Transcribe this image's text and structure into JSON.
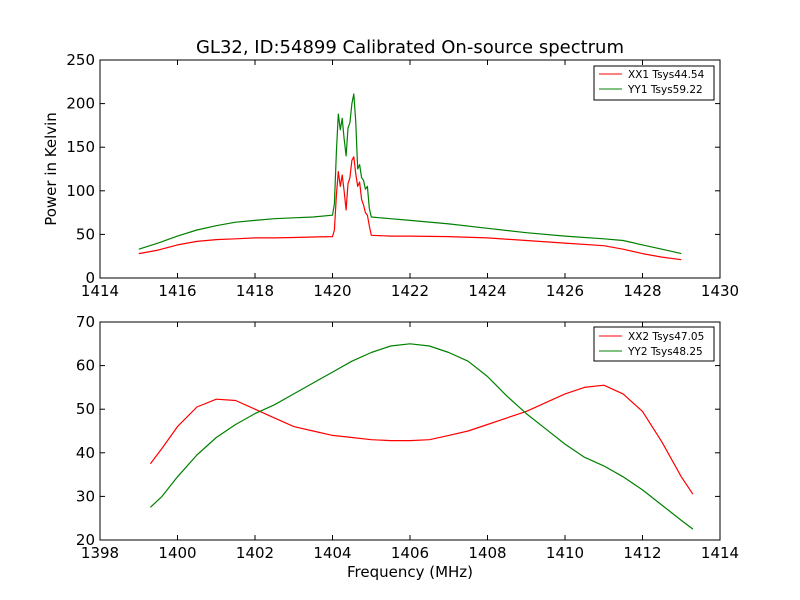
{
  "title": "GL32, ID:54899 Calibrated On-source spectrum",
  "colors": {
    "red": "#ff0000",
    "green": "#008000",
    "frame": "#000000"
  },
  "chart_data": [
    {
      "type": "line",
      "xlabel": "",
      "ylabel": "Power in Kelvin",
      "xlim": [
        1414,
        1430
      ],
      "ylim": [
        0,
        250
      ],
      "xticks": [
        1414,
        1416,
        1418,
        1420,
        1422,
        1424,
        1426,
        1428,
        1430
      ],
      "yticks": [
        0,
        50,
        100,
        150,
        200,
        250
      ],
      "grid": false,
      "legend": "top-right",
      "series": [
        {
          "name": "XX1 Tsys44.54",
          "color": "#ff0000",
          "points": [
            [
              1415.0,
              28
            ],
            [
              1415.5,
              32
            ],
            [
              1416.0,
              38
            ],
            [
              1416.5,
              42
            ],
            [
              1417.0,
              44
            ],
            [
              1417.5,
              45
            ],
            [
              1418.0,
              46
            ],
            [
              1418.5,
              46
            ],
            [
              1419.0,
              46.5
            ],
            [
              1419.5,
              47
            ],
            [
              1420.0,
              47.5
            ],
            [
              1420.05,
              55
            ],
            [
              1420.1,
              95
            ],
            [
              1420.15,
              122
            ],
            [
              1420.2,
              105
            ],
            [
              1420.25,
              118
            ],
            [
              1420.3,
              100
            ],
            [
              1420.35,
              78
            ],
            [
              1420.4,
              108
            ],
            [
              1420.45,
              115
            ],
            [
              1420.5,
              135
            ],
            [
              1420.55,
              139
            ],
            [
              1420.6,
              120
            ],
            [
              1420.65,
              105
            ],
            [
              1420.7,
              110
            ],
            [
              1420.75,
              90
            ],
            [
              1420.8,
              84
            ],
            [
              1420.85,
              75
            ],
            [
              1420.9,
              72
            ],
            [
              1420.95,
              60
            ],
            [
              1421.0,
              49
            ],
            [
              1421.5,
              48
            ],
            [
              1422.0,
              48
            ],
            [
              1423.0,
              47.5
            ],
            [
              1424.0,
              46
            ],
            [
              1425.0,
              43
            ],
            [
              1426.0,
              40
            ],
            [
              1427.0,
              37
            ],
            [
              1427.5,
              33
            ],
            [
              1428.0,
              28
            ],
            [
              1428.5,
              24
            ],
            [
              1429.0,
              21
            ]
          ]
        },
        {
          "name": "YY1 Tsys59.22",
          "color": "#008000",
          "points": [
            [
              1415.0,
              33
            ],
            [
              1415.5,
              40
            ],
            [
              1416.0,
              48
            ],
            [
              1416.5,
              55
            ],
            [
              1417.0,
              60
            ],
            [
              1417.5,
              64
            ],
            [
              1418.0,
              66
            ],
            [
              1418.5,
              68
            ],
            [
              1419.0,
              69
            ],
            [
              1419.5,
              70
            ],
            [
              1420.0,
              72
            ],
            [
              1420.05,
              85
            ],
            [
              1420.1,
              145
            ],
            [
              1420.15,
              188
            ],
            [
              1420.2,
              170
            ],
            [
              1420.25,
              183
            ],
            [
              1420.3,
              160
            ],
            [
              1420.35,
              140
            ],
            [
              1420.4,
              172
            ],
            [
              1420.45,
              178
            ],
            [
              1420.5,
              200
            ],
            [
              1420.55,
              211
            ],
            [
              1420.6,
              180
            ],
            [
              1420.65,
              125
            ],
            [
              1420.7,
              130
            ],
            [
              1420.75,
              115
            ],
            [
              1420.8,
              112
            ],
            [
              1420.85,
              102
            ],
            [
              1420.9,
              105
            ],
            [
              1420.95,
              80
            ],
            [
              1421.0,
              70
            ],
            [
              1421.5,
              68
            ],
            [
              1422.0,
              66
            ],
            [
              1423.0,
              62
            ],
            [
              1424.0,
              57
            ],
            [
              1425.0,
              52
            ],
            [
              1426.0,
              48
            ],
            [
              1427.0,
              45
            ],
            [
              1427.5,
              43
            ],
            [
              1428.0,
              38
            ],
            [
              1428.5,
              33
            ],
            [
              1429.0,
              28
            ]
          ]
        }
      ]
    },
    {
      "type": "line",
      "xlabel": "Frequency (MHz)",
      "ylabel": "",
      "xlim": [
        1398,
        1414
      ],
      "ylim": [
        20,
        70
      ],
      "xticks": [
        1398,
        1400,
        1402,
        1404,
        1406,
        1408,
        1410,
        1412,
        1414
      ],
      "yticks": [
        20,
        30,
        40,
        50,
        60,
        70
      ],
      "grid": false,
      "legend": "top-right",
      "series": [
        {
          "name": "XX2 Tsys47.05",
          "color": "#ff0000",
          "points": [
            [
              1399.3,
              37.5
            ],
            [
              1399.6,
              41
            ],
            [
              1400.0,
              46
            ],
            [
              1400.5,
              50.5
            ],
            [
              1401.0,
              52.3
            ],
            [
              1401.5,
              52
            ],
            [
              1402.0,
              50
            ],
            [
              1402.5,
              48
            ],
            [
              1403.0,
              46
            ],
            [
              1403.5,
              45
            ],
            [
              1404.0,
              44
            ],
            [
              1404.5,
              43.5
            ],
            [
              1405.0,
              43
            ],
            [
              1405.5,
              42.8
            ],
            [
              1406.0,
              42.8
            ],
            [
              1406.5,
              43
            ],
            [
              1407.0,
              44
            ],
            [
              1407.5,
              45
            ],
            [
              1408.0,
              46.5
            ],
            [
              1408.5,
              48
            ],
            [
              1409.0,
              49.5
            ],
            [
              1409.5,
              51.5
            ],
            [
              1410.0,
              53.5
            ],
            [
              1410.5,
              55
            ],
            [
              1411.0,
              55.5
            ],
            [
              1411.5,
              53.5
            ],
            [
              1412.0,
              49.5
            ],
            [
              1412.5,
              42.5
            ],
            [
              1413.0,
              34.5
            ],
            [
              1413.3,
              30.5
            ]
          ]
        },
        {
          "name": "YY2 Tsys48.25",
          "color": "#008000",
          "points": [
            [
              1399.3,
              27.5
            ],
            [
              1399.6,
              30
            ],
            [
              1400.0,
              34.5
            ],
            [
              1400.5,
              39.5
            ],
            [
              1401.0,
              43.5
            ],
            [
              1401.5,
              46.5
            ],
            [
              1402.0,
              49
            ],
            [
              1402.5,
              51
            ],
            [
              1403.0,
              53.5
            ],
            [
              1403.5,
              56
            ],
            [
              1404.0,
              58.5
            ],
            [
              1404.5,
              61
            ],
            [
              1405.0,
              63
            ],
            [
              1405.5,
              64.5
            ],
            [
              1406.0,
              65
            ],
            [
              1406.5,
              64.5
            ],
            [
              1407.0,
              63
            ],
            [
              1407.5,
              61
            ],
            [
              1408.0,
              57.5
            ],
            [
              1408.5,
              53
            ],
            [
              1409.0,
              49
            ],
            [
              1409.5,
              45.5
            ],
            [
              1410.0,
              42
            ],
            [
              1410.5,
              39
            ],
            [
              1411.0,
              37
            ],
            [
              1411.5,
              34.5
            ],
            [
              1412.0,
              31.5
            ],
            [
              1412.5,
              28
            ],
            [
              1413.0,
              24.5
            ],
            [
              1413.3,
              22.5
            ]
          ]
        }
      ]
    }
  ]
}
